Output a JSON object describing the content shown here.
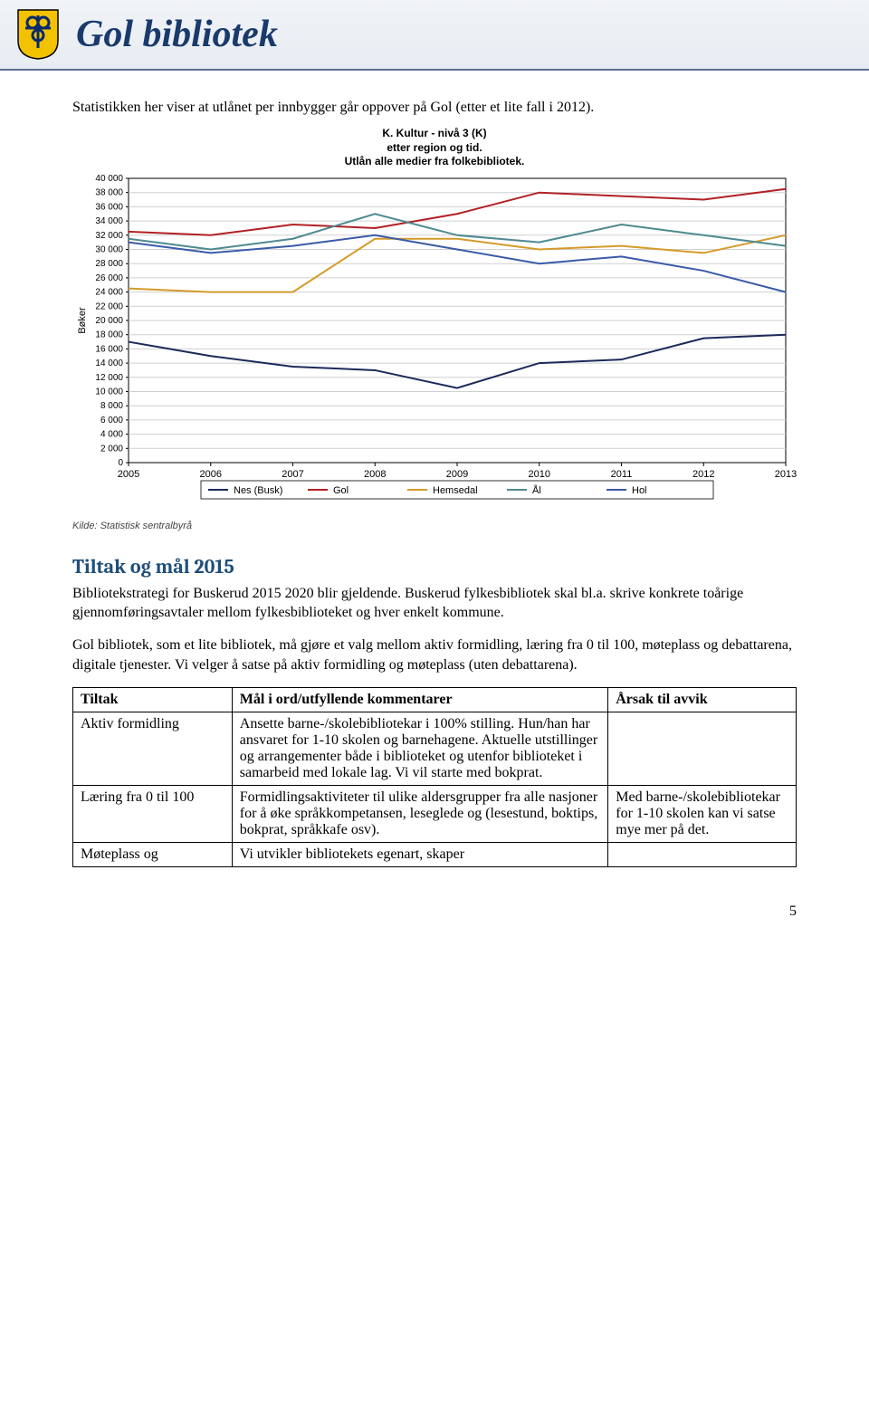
{
  "header": {
    "site_title": "Gol bibliotek",
    "crest_colors": {
      "shield": "#f2c200",
      "accent": "#0a2a6b"
    }
  },
  "intro_text": "Statistikken her viser at utlånet per innbygger går oppover på Gol (etter et lite fall i 2012).",
  "chart": {
    "type": "line",
    "title_line1": "K. Kultur - nivå 3 (K)",
    "title_line2": "etter region og tid.",
    "title_line3": "Utlån alle medier fra folkebibliotek.",
    "title_fontsize": 12,
    "x_categories": [
      "2005",
      "2006",
      "2007",
      "2008",
      "2009",
      "2010",
      "2011",
      "2012",
      "2013"
    ],
    "y_ticks": [
      0,
      2000,
      4000,
      6000,
      8000,
      10000,
      12000,
      14000,
      16000,
      18000,
      20000,
      22000,
      24000,
      26000,
      28000,
      30000,
      32000,
      34000,
      36000,
      38000,
      40000
    ],
    "y_tick_labels": [
      "0",
      "2 000",
      "4 000",
      "6 000",
      "8 000",
      "10 000",
      "12 000",
      "14 000",
      "16 000",
      "18 000",
      "20 000",
      "22 000",
      "24 000",
      "26 000",
      "28 000",
      "30 000",
      "32 000",
      "34 000",
      "36 000",
      "38 000",
      "40 000"
    ],
    "ylim": [
      0,
      40000
    ],
    "y_label": "Bøker",
    "label_fontsize": 11,
    "series": [
      {
        "name": "Nes (Busk)",
        "color": "#1b2a59",
        "values": [
          17000,
          15000,
          13500,
          13000,
          10500,
          14000,
          14500,
          17500,
          18000
        ]
      },
      {
        "name": "Gol",
        "color": "#b22024",
        "values": [
          32500,
          32000,
          33500,
          33000,
          35000,
          38000,
          37500,
          37000,
          38500
        ]
      },
      {
        "name": "Hemsedal",
        "color": "#d49b2a",
        "values": [
          24500,
          24000,
          24000,
          31500,
          31500,
          30000,
          30500,
          29500,
          32000
        ]
      },
      {
        "name": "Ål",
        "color": "#4f8a90",
        "values": [
          31500,
          30000,
          31500,
          35000,
          32000,
          31000,
          33500,
          32000,
          30500
        ]
      },
      {
        "name": "Hol",
        "color": "#3a5ba8",
        "values": [
          31000,
          29500,
          30500,
          32000,
          30000,
          28000,
          29000,
          27000,
          24000
        ]
      }
    ],
    "line_width": 2,
    "background_color": "#ffffff",
    "grid_color": "#d0d0d0",
    "axis_color": "#000000",
    "source_text": "Kilde: Statistisk sentralbyrå"
  },
  "section": {
    "heading": "Tiltak og mål 2015",
    "p1": "Bibliotekstrategi for Buskerud 2015 2020 blir gjeldende. Buskerud fylkesbibliotek skal bl.a. skrive konkrete toårige gjennomføringsavtaler mellom fylkesbiblioteket og hver enkelt kommune.",
    "p2": "Gol bibliotek, som et lite bibliotek, må gjøre et valg mellom aktiv formidling, læring fra 0 til 100, møteplass og debattarena, digitale tjenester. Vi velger å satse på aktiv formidling og møteplass (uten debattarena)."
  },
  "table": {
    "columns": [
      "Tiltak",
      "Mål i ord/utfyllende kommentarer",
      "Årsak til avvik"
    ],
    "col_widths": [
      "22%",
      "52%",
      "26%"
    ],
    "rows": [
      {
        "tiltak": "Aktiv formidling",
        "maal": "Ansette barne-/skolebibliotekar i 100% stilling. Hun/han har ansvaret for 1-10 skolen og barnehagene. Aktuelle utstillinger og arrangementer både i biblioteket og utenfor biblioteket i samarbeid med lokale lag. Vi vil starte med bokprat.",
        "aarsak": ""
      },
      {
        "tiltak": "Læring fra 0 til 100",
        "maal": "Formidlingsaktiviteter til ulike aldersgrupper fra alle nasjoner for å øke språkkompetansen, leseglede og (lesestund, boktips, bokprat, språkkafe osv).",
        "aarsak": "Med barne-/skolebibliotekar for 1-10 skolen kan vi satse mye mer på det."
      },
      {
        "tiltak": "Møteplass og",
        "maal": "Vi utvikler bibliotekets egenart, skaper",
        "aarsak": ""
      }
    ]
  },
  "page_number": "5"
}
